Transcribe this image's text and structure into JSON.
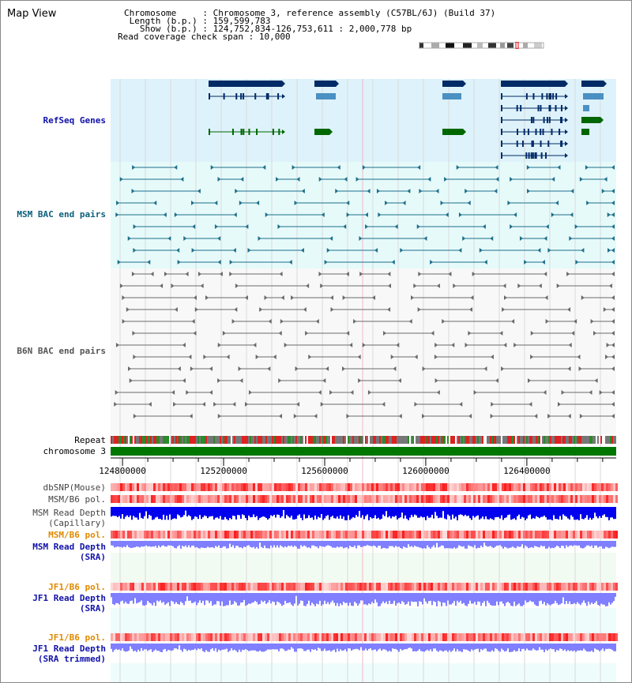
{
  "page_title": "Map View",
  "summary": {
    "chromosome_key": "Chromosome",
    "chromosome_val": "Chromosome 3, reference assembly (C57BL/6J) (Build 37)",
    "length_key": "Length (b.p.)",
    "length_val": "159,599,783",
    "show_key": "Show (b.p.)",
    "show_val": "124,752,834-126,753,611 : 2,000,778 bp",
    "span_key": "Read coverage check span",
    "span_val": "10,000"
  },
  "region": {
    "start": 124752834,
    "end": 126753611
  },
  "tracks": {
    "refseq": "RefSeq Genes",
    "msm_bac": "MSM BAC end pairs",
    "b6n_bac": "B6N BAC end pairs",
    "repeat": "Repeat",
    "chrom": "chromosome 3",
    "dbsnp": "dbSNP(Mouse)",
    "msm_b6_pol_1": "MSM/B6 pol.",
    "msm_depth_cap_1": "MSM Read Depth",
    "msm_depth_cap_2": "(Capillary)",
    "msm_b6_pol_2": "MSM/B6 pol.",
    "msm_depth_sra_1": "MSM Read Depth",
    "msm_depth_sra_2": "(SRA)",
    "jf1_b6_pol_1": "JF1/B6 pol.",
    "jf1_depth_sra_1": "JF1 Read Depth",
    "jf1_depth_sra_2": "(SRA)",
    "jf1_b6_pol_2": "JF1/B6 pol.",
    "jf1_depth_trim_1": "JF1 Read Depth",
    "jf1_depth_trim_2": "(SRA trimmed)"
  },
  "ruler_ticks": [
    "124800000",
    "125200000",
    "125600000",
    "126000000",
    "126400000"
  ],
  "colors": {
    "refseq_bg": "#def2fb",
    "msm_bac_bg": "#e6fafa",
    "b6n_bac_bg": "#f7f7f7",
    "gene_dark": "#002b66",
    "gene_mid": "#4a90c2",
    "gene_green": "#006600",
    "msm_line": "#1f6f8b",
    "b6n_line": "#6a6a6a",
    "chrom_bar": "#007700",
    "depth_dark": "#0000ee",
    "depth_light": "#7f7fff",
    "pol_red": "#ff3333",
    "label_blue": "#1111aa",
    "label_teal": "#0a5f7a",
    "label_orange": "#e08a00",
    "label_gray": "#444444"
  }
}
